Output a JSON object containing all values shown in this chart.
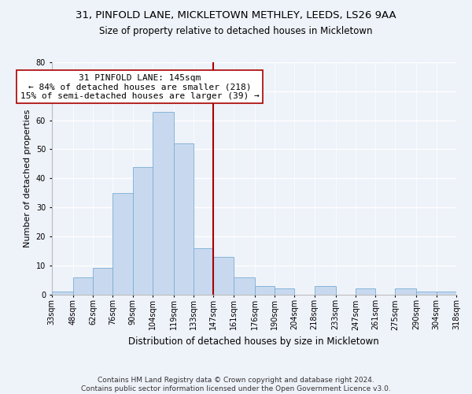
{
  "title": "31, PINFOLD LANE, MICKLETOWN METHLEY, LEEDS, LS26 9AA",
  "subtitle": "Size of property relative to detached houses in Mickletown",
  "xlabel": "Distribution of detached houses by size in Mickletown",
  "ylabel": "Number of detached properties",
  "bar_values": [
    1,
    6,
    9,
    35,
    44,
    63,
    52,
    16,
    13,
    6,
    3,
    2,
    0,
    3,
    0,
    2,
    0,
    2,
    1,
    1
  ],
  "bin_labels": [
    "33sqm",
    "48sqm",
    "62sqm",
    "76sqm",
    "90sqm",
    "104sqm",
    "119sqm",
    "133sqm",
    "147sqm",
    "161sqm",
    "176sqm",
    "190sqm",
    "204sqm",
    "218sqm",
    "233sqm",
    "247sqm",
    "261sqm",
    "275sqm",
    "290sqm",
    "304sqm",
    "318sqm"
  ],
  "bin_edges": [
    33,
    48,
    62,
    76,
    90,
    104,
    119,
    133,
    147,
    161,
    176,
    190,
    204,
    218,
    233,
    247,
    261,
    275,
    290,
    304,
    318
  ],
  "bar_color": "#c8d9ef",
  "bar_edge_color": "#7aadd4",
  "vline_x": 147,
  "vline_color": "#aa0000",
  "annotation_title": "31 PINFOLD LANE: 145sqm",
  "annotation_line1": "← 84% of detached houses are smaller (218)",
  "annotation_line2": "15% of semi-detached houses are larger (39) →",
  "annotation_box_color": "#ffffff",
  "annotation_box_edge": "#aa0000",
  "ylim": [
    0,
    80
  ],
  "yticks": [
    0,
    10,
    20,
    30,
    40,
    50,
    60,
    70,
    80
  ],
  "background_color": "#eef2f9",
  "footer1": "Contains HM Land Registry data © Crown copyright and database right 2024.",
  "footer2": "Contains public sector information licensed under the Open Government Licence v3.0.",
  "title_fontsize": 9.5,
  "subtitle_fontsize": 8.5,
  "xlabel_fontsize": 8.5,
  "ylabel_fontsize": 8,
  "tick_fontsize": 7,
  "annot_fontsize": 8,
  "footer_fontsize": 6.5
}
